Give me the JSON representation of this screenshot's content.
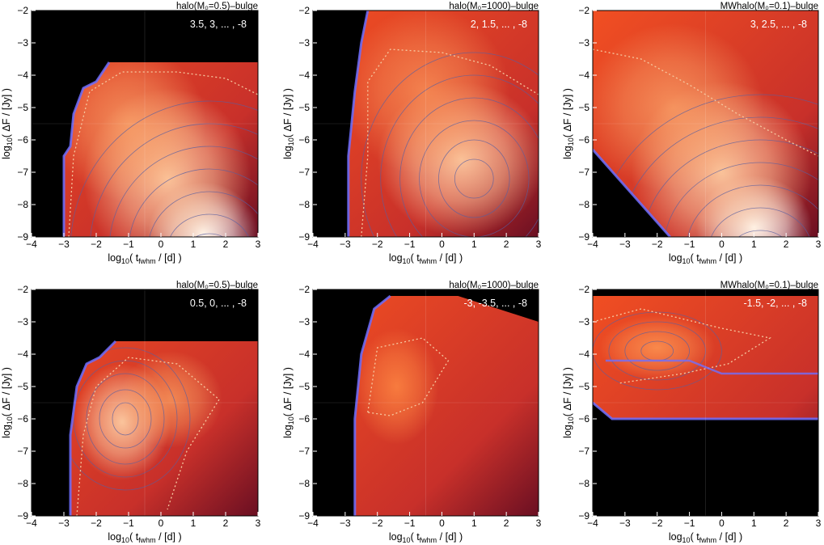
{
  "chart_data": [
    {
      "type": "heatmap",
      "title": "halo(M₀=0.5)–bulge",
      "annotation": "3.5, 3, ... , -8",
      "xlabel": "log₁₀( t_fwhm / [d] )",
      "ylabel": "log₁₀( ΔF / [Jy] )",
      "xlim": [
        -4,
        3
      ],
      "ylim": [
        -9,
        -2
      ],
      "xticks": [
        -4,
        -3,
        -2,
        -1,
        0,
        1,
        2,
        3
      ],
      "yticks": [
        -2,
        -3,
        -4,
        -5,
        -6,
        -7,
        -8,
        -9
      ],
      "contour_levels": {
        "max": 3.5,
        "step": -0.5,
        "min": -8
      },
      "upper_flux_limit": -3.6,
      "lower_edge": [
        [
          -3.0,
          -9.0
        ],
        [
          -3.0,
          -6.5
        ],
        [
          -2.8,
          -6.2
        ],
        [
          -2.7,
          -5.2
        ],
        [
          -2.4,
          -4.4
        ],
        [
          -2.0,
          -4.2
        ],
        [
          -1.6,
          -3.6
        ]
      ],
      "peak_region": {
        "x": 1.5,
        "y": -8.8
      }
    },
    {
      "type": "heatmap",
      "title": "halo(M₀=1000)–bulge",
      "annotation": "2, 1.5, ... , -8",
      "xlabel": "log₁₀( t_fwhm / [d] )",
      "ylabel": "log₁₀( ΔF / [Jy] )",
      "xlim": [
        -4,
        3
      ],
      "ylim": [
        -9,
        -2
      ],
      "xticks": [
        -4,
        -3,
        -2,
        -1,
        0,
        1,
        2,
        3
      ],
      "yticks": [
        -2,
        -3,
        -4,
        -5,
        -6,
        -7,
        -8,
        -9
      ],
      "contour_levels": {
        "max": 2,
        "step": -0.5,
        "min": -8
      },
      "lower_edge": [
        [
          -2.9,
          -9.0
        ],
        [
          -2.9,
          -6.5
        ],
        [
          -2.7,
          -4.5
        ],
        [
          -2.5,
          -3.0
        ],
        [
          -2.3,
          -2.0
        ]
      ],
      "peak_region": {
        "x": 0.5,
        "y": -6.5
      }
    },
    {
      "type": "heatmap",
      "title": "MWhalo(M₀=0.1)–bulge",
      "annotation": "3, 2.5, ... , -8",
      "xlabel": "log₁₀( t_fwhm / [d] )",
      "ylabel": "log₁₀( ΔF / [Jy] )",
      "xlim": [
        -4,
        3
      ],
      "ylim": [
        -9,
        -2
      ],
      "xticks": [
        -4,
        -3,
        -2,
        -1,
        0,
        1,
        2,
        3
      ],
      "yticks": [
        -2,
        -3,
        -4,
        -5,
        -6,
        -7,
        -8,
        -9
      ],
      "contour_levels": {
        "max": 3,
        "step": -0.5,
        "min": -8
      },
      "lower_edge": [
        [
          -4.0,
          -6.3
        ],
        [
          -1.6,
          -9.0
        ]
      ],
      "peak_region": {
        "x": 1.0,
        "y": -8.6
      }
    },
    {
      "type": "heatmap",
      "title": "halo(M₀=0.5)–bulge",
      "annotation": "0.5, 0, ... , -8",
      "xlabel": "log₁₀( t_fwhm / [d] )",
      "ylabel": "log₁₀( ΔF / [Jy] )",
      "xlim": [
        -4,
        3
      ],
      "ylim": [
        -9,
        -2
      ],
      "xticks": [
        -4,
        -3,
        -2,
        -1,
        0,
        1,
        2,
        3
      ],
      "yticks": [
        -2,
        -3,
        -4,
        -5,
        -6,
        -7,
        -8,
        -9
      ],
      "contour_levels": {
        "max": 0.5,
        "step": -0.5,
        "min": -8
      },
      "upper_flux_limit": -3.6,
      "lower_edge": [
        [
          -2.8,
          -9.0
        ],
        [
          -2.8,
          -6.5
        ],
        [
          -2.6,
          -5.0
        ],
        [
          -2.3,
          -4.3
        ],
        [
          -1.9,
          -4.1
        ],
        [
          -1.4,
          -3.6
        ]
      ],
      "peak_region": {
        "x": -1.2,
        "y": -6.0
      }
    },
    {
      "type": "heatmap",
      "title": "halo(M₀=1000)–bulge",
      "annotation": "-3, -3.5, ... , -8",
      "xlabel": "log₁₀( t_fwhm / [d] )",
      "ylabel": "log₁₀( ΔF / [Jy] )",
      "xlim": [
        -4,
        3
      ],
      "ylim": [
        -9,
        -2
      ],
      "xticks": [
        -4,
        -3,
        -2,
        -1,
        0,
        1,
        2,
        3
      ],
      "yticks": [
        -2,
        -3,
        -4,
        -5,
        -6,
        -7,
        -8,
        -9
      ],
      "contour_levels": {
        "max": -3,
        "step": -0.5,
        "min": -8
      },
      "lower_edge": [
        [
          -2.7,
          -9.0
        ],
        [
          -2.7,
          -6.0
        ],
        [
          -2.5,
          -4.0
        ],
        [
          -2.1,
          -2.6
        ],
        [
          -1.6,
          -2.2
        ]
      ],
      "peak_region": {
        "x": -1.3,
        "y": -5.0
      }
    },
    {
      "type": "heatmap",
      "title": "MWhalo(M₀=0.1)–bulge",
      "annotation": "-1.5, -2, ... , -8",
      "xlabel": "log₁₀( t_fwhm / [d] )",
      "ylabel": "log₁₀( ΔF / [Jy] )",
      "xlim": [
        -4,
        3
      ],
      "ylim": [
        -9,
        -2
      ],
      "xticks": [
        -4,
        -3,
        -2,
        -1,
        0,
        1,
        2,
        3
      ],
      "yticks": [
        -2,
        -3,
        -4,
        -5,
        -6,
        -7,
        -8,
        -9
      ],
      "contour_levels": {
        "max": -1.5,
        "step": -0.5,
        "min": -8
      },
      "lower_edge": [
        [
          -4.0,
          -5.5
        ],
        [
          -3.4,
          -6.0
        ],
        [
          3.0,
          -6.0
        ]
      ],
      "step_edge": [
        [
          -3.6,
          -4.2
        ],
        [
          -1.0,
          -4.2
        ],
        [
          0.0,
          -4.6
        ],
        [
          3.0,
          -4.6
        ]
      ],
      "peak_region": {
        "x": -2.0,
        "y": -3.8
      }
    }
  ],
  "colors": {
    "background": "#000000",
    "low": "#6a0f22",
    "mid": "#f14f22",
    "high": "#ffd3a8",
    "peak": "#ffffff",
    "contour_line": "#5a5fa0",
    "dotted_contour": "#f6c9a0",
    "edge": "#6f6fff"
  }
}
